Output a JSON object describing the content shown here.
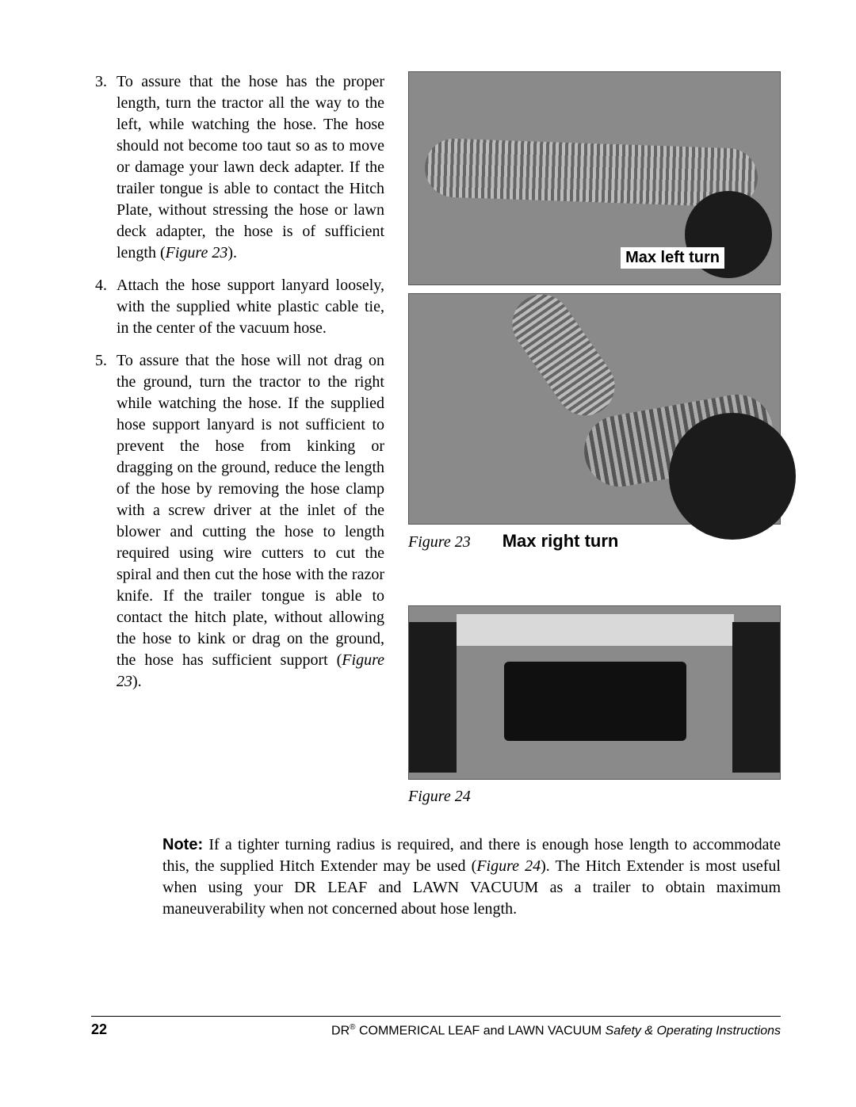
{
  "steps": [
    {
      "n": "3.",
      "text_before_ref": "To assure that the hose has the proper length, turn the tractor all the way to the left, while watching the hose. The hose should not become too taut so as to move or damage your lawn deck adapter. If the trailer tongue is able to contact the Hitch Plate, without stressing the hose or lawn deck adapter, the hose is of sufficient length (",
      "ref": "Figure 23",
      "text_after_ref": ")."
    },
    {
      "n": "4.",
      "text_before_ref": "Attach the hose support lanyard loosely, with the supplied white plastic cable tie, in the center of the vacuum hose.",
      "ref": "",
      "text_after_ref": ""
    },
    {
      "n": "5.",
      "text_before_ref": "To assure that the hose will not drag on the ground, turn the tractor to the right while watching the hose. If the supplied hose support lanyard is not sufficient to prevent the hose from kinking or dragging on the ground, reduce the length of the hose by removing the hose clamp with a screw driver at the inlet of the blower and cutting the hose to length required using wire cutters to cut the spiral and then cut the hose with the razor knife. If the trailer tongue is able to contact the hitch plate, without allowing the hose to kink or drag on the ground, the hose has sufficient support (",
      "ref": "Figure 23",
      "text_after_ref": ")."
    }
  ],
  "fig23": {
    "label_top": "Max left turn",
    "label_bottom": "Max right turn",
    "caption": "Figure 23"
  },
  "fig24": {
    "caption": "Figure 24"
  },
  "note": {
    "label": "Note:",
    "text_before_ref": " If a tighter turning radius is required, and there is enough hose length to accommodate this, the supplied Hitch Extender may be used (",
    "ref": "Figure 24",
    "text_after_ref": "). The Hitch Extender is most useful when using your DR LEAF and LAWN VACUUM as a trailer to obtain maximum maneuverability when not concerned about hose length."
  },
  "footer": {
    "page_number": "22",
    "brand": "DR",
    "reg": "®",
    "mid": " COMMERICAL LEAF and LAWN VACUUM ",
    "tail": "Safety & Operating Instructions"
  }
}
